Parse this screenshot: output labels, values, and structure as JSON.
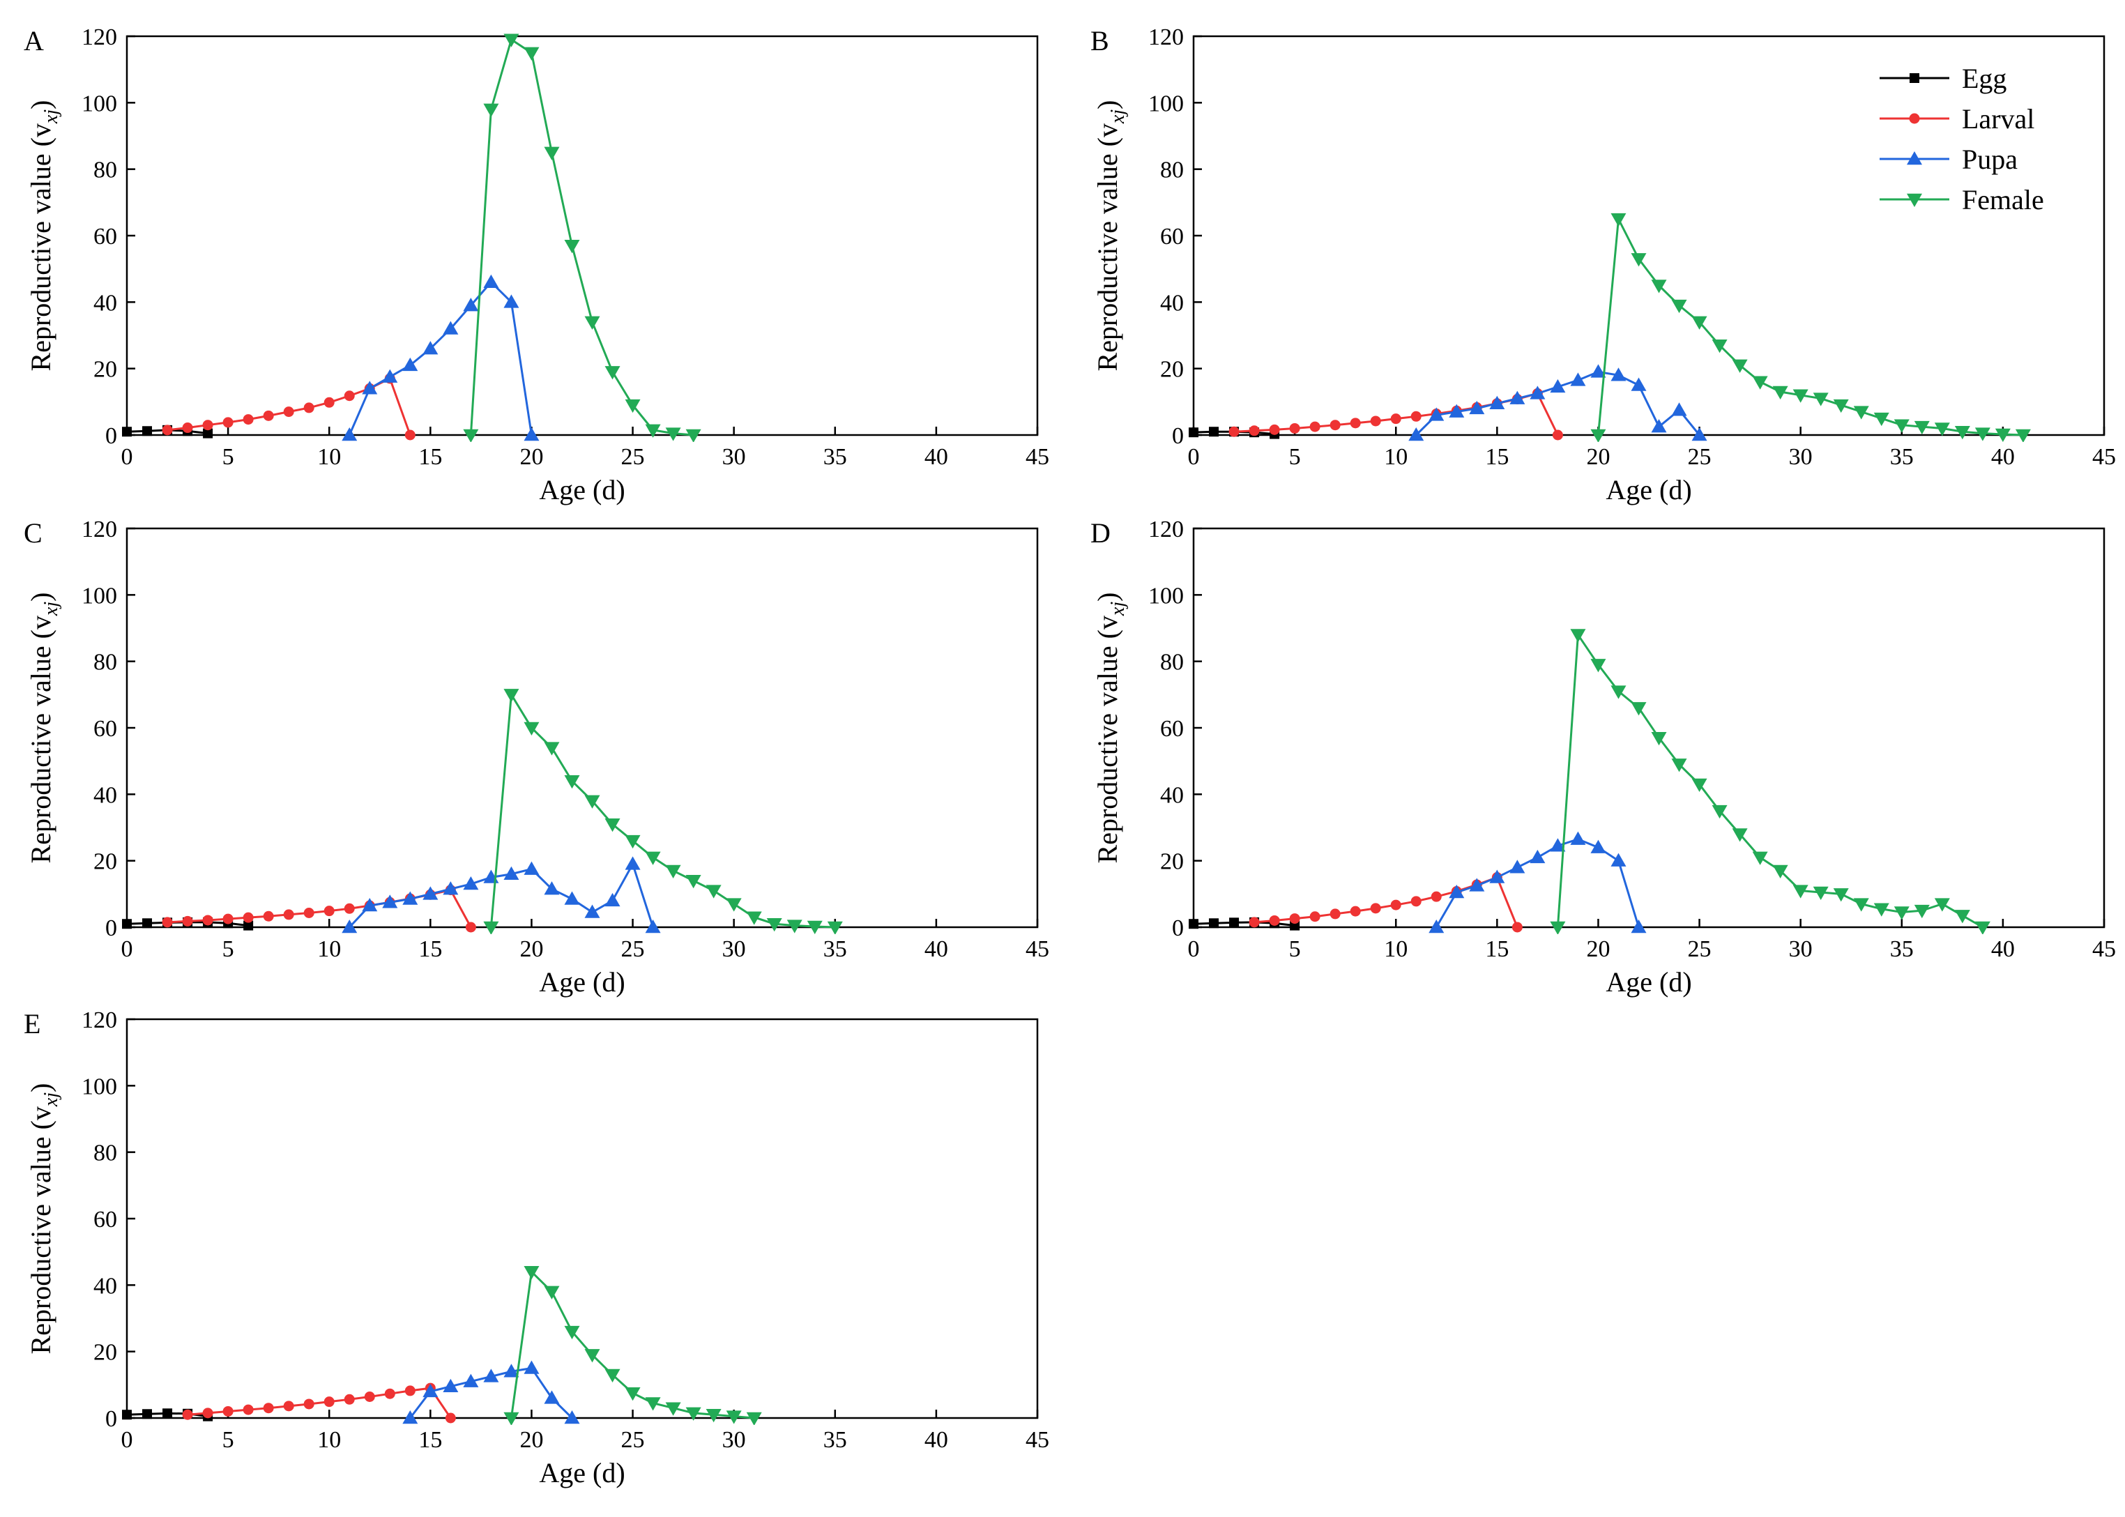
{
  "colors": {
    "egg": "#000000",
    "larval": "#ee3333",
    "pupa": "#2266dd",
    "female": "#22aa55"
  },
  "legend": {
    "labels": [
      "Egg",
      "Larval",
      "Pupa",
      "Female"
    ]
  },
  "chart_data": [
    {
      "type": "line",
      "panel": "A",
      "xlabel": "Age (d)",
      "ylabel": "Reproductive value (v",
      "ylabel_sub": "xj",
      "ylabel_close": ")",
      "xlim": [
        0,
        45
      ],
      "ylim": [
        0,
        120
      ],
      "xticks": [
        0,
        5,
        10,
        15,
        20,
        25,
        30,
        35,
        40,
        45
      ],
      "yticks": [
        0,
        20,
        40,
        60,
        80,
        100,
        120
      ],
      "series": [
        {
          "name": "Egg",
          "x": [
            0,
            1,
            2,
            3,
            4
          ],
          "y": [
            1,
            1.2,
            1.5,
            1.2,
            0.5
          ]
        },
        {
          "name": "Larval",
          "x": [
            2,
            3,
            4,
            5,
            6,
            7,
            8,
            9,
            10,
            11,
            12,
            13,
            14
          ],
          "y": [
            1.5,
            2.2,
            3,
            3.8,
            4.7,
            5.8,
            7,
            8.2,
            9.8,
            11.8,
            14,
            17,
            0
          ]
        },
        {
          "name": "Pupa",
          "x": [
            11,
            12,
            13,
            14,
            15,
            16,
            17,
            18,
            19,
            20
          ],
          "y": [
            0,
            14,
            17.5,
            21,
            26,
            32,
            39,
            46,
            40,
            0
          ]
        },
        {
          "name": "Female",
          "x": [
            17,
            18,
            19,
            20,
            21,
            22,
            23,
            24,
            25,
            26,
            27,
            28
          ],
          "y": [
            0,
            98,
            119,
            115,
            85,
            57,
            34,
            19,
            9,
            1.5,
            0.5,
            0
          ]
        }
      ]
    },
    {
      "type": "line",
      "panel": "B",
      "xlabel": "Age (d)",
      "ylabel": "Reproductive value (v",
      "ylabel_sub": "xj",
      "ylabel_close": ")",
      "xlim": [
        0,
        45
      ],
      "ylim": [
        0,
        120
      ],
      "xticks": [
        0,
        5,
        10,
        15,
        20,
        25,
        30,
        35,
        40,
        45
      ],
      "yticks": [
        0,
        20,
        40,
        60,
        80,
        100,
        120
      ],
      "series": [
        {
          "name": "Egg",
          "x": [
            0,
            1,
            2,
            3,
            4
          ],
          "y": [
            0.8,
            1,
            1,
            0.8,
            0.3
          ]
        },
        {
          "name": "Larval",
          "x": [
            2,
            3,
            4,
            5,
            6,
            7,
            8,
            9,
            10,
            11,
            12,
            13,
            14,
            15,
            16,
            17,
            18
          ],
          "y": [
            1,
            1.3,
            1.6,
            2,
            2.5,
            3,
            3.6,
            4.2,
            4.9,
            5.6,
            6.4,
            7.3,
            8.3,
            9.5,
            10.8,
            12.5,
            0
          ]
        },
        {
          "name": "Pupa",
          "x": [
            11,
            12,
            13,
            14,
            15,
            16,
            17,
            18,
            19,
            20,
            21,
            22,
            23,
            24,
            25
          ],
          "y": [
            0,
            6,
            7,
            8,
            9.5,
            11,
            12.5,
            14.5,
            16.5,
            19,
            18,
            15,
            2.5,
            7.5,
            0
          ]
        },
        {
          "name": "Female",
          "x": [
            20,
            21,
            22,
            23,
            24,
            25,
            26,
            27,
            28,
            29,
            30,
            31,
            32,
            33,
            34,
            35,
            36,
            37,
            38,
            39,
            40,
            41
          ],
          "y": [
            0,
            65,
            53,
            45,
            39,
            34,
            27,
            21,
            16,
            13,
            12,
            11,
            9,
            7,
            5,
            3,
            2.5,
            2,
            1,
            0.5,
            0.2,
            0
          ]
        }
      ]
    },
    {
      "type": "line",
      "panel": "C",
      "xlabel": "Age (d)",
      "ylabel": "Reproductive value (v",
      "ylabel_sub": "xj",
      "ylabel_close": ")",
      "xlim": [
        0,
        45
      ],
      "ylim": [
        0,
        120
      ],
      "xticks": [
        0,
        5,
        10,
        15,
        20,
        25,
        30,
        35,
        40,
        45
      ],
      "yticks": [
        0,
        20,
        40,
        60,
        80,
        100,
        120
      ],
      "series": [
        {
          "name": "Egg",
          "x": [
            0,
            1,
            2,
            3,
            4,
            5,
            6
          ],
          "y": [
            1,
            1.2,
            1.4,
            1.5,
            1.5,
            1.2,
            0.5
          ]
        },
        {
          "name": "Larval",
          "x": [
            2,
            3,
            4,
            5,
            6,
            7,
            8,
            9,
            10,
            11,
            12,
            13,
            14,
            15,
            16,
            17
          ],
          "y": [
            1.5,
            1.8,
            2.1,
            2.5,
            2.9,
            3.3,
            3.8,
            4.3,
            4.9,
            5.6,
            6.5,
            7.5,
            8.6,
            9.8,
            11.2,
            0
          ]
        },
        {
          "name": "Pupa",
          "x": [
            11,
            12,
            13,
            14,
            15,
            16,
            17,
            18,
            19,
            20,
            21,
            22,
            23,
            24,
            25,
            26
          ],
          "y": [
            0,
            6.5,
            7.5,
            8.5,
            10,
            11.5,
            13,
            15,
            16,
            17.5,
            11.5,
            8.5,
            4.5,
            8,
            19,
            0
          ]
        },
        {
          "name": "Female",
          "x": [
            18,
            19,
            20,
            21,
            22,
            23,
            24,
            25,
            26,
            27,
            28,
            29,
            30,
            31,
            32,
            33,
            34,
            35
          ],
          "y": [
            0,
            70,
            60,
            54,
            44,
            38,
            31,
            26,
            21,
            17,
            14,
            11,
            7,
            3,
            1,
            0.5,
            0.2,
            0
          ]
        }
      ]
    },
    {
      "type": "line",
      "panel": "D",
      "xlabel": "Age (d)",
      "ylabel": "Reproductive value (v",
      "ylabel_sub": "xj",
      "ylabel_close": ")",
      "xlim": [
        0,
        45
      ],
      "ylim": [
        0,
        120
      ],
      "xticks": [
        0,
        5,
        10,
        15,
        20,
        25,
        30,
        35,
        40,
        45
      ],
      "yticks": [
        0,
        20,
        40,
        60,
        80,
        100,
        120
      ],
      "series": [
        {
          "name": "Egg",
          "x": [
            0,
            1,
            2,
            3,
            4,
            5
          ],
          "y": [
            1,
            1.2,
            1.4,
            1.5,
            1.2,
            0.5
          ]
        },
        {
          "name": "Larval",
          "x": [
            3,
            4,
            5,
            6,
            7,
            8,
            9,
            10,
            11,
            12,
            13,
            14,
            15,
            16
          ],
          "y": [
            1.5,
            2,
            2.6,
            3.2,
            4,
            4.8,
            5.7,
            6.7,
            7.8,
            9.2,
            10.8,
            12.8,
            15,
            0
          ]
        },
        {
          "name": "Pupa",
          "x": [
            12,
            13,
            14,
            15,
            16,
            17,
            18,
            19,
            20,
            21,
            22
          ],
          "y": [
            0,
            10.5,
            12.5,
            15,
            18,
            21,
            24.5,
            26.5,
            24,
            20,
            0
          ]
        },
        {
          "name": "Female",
          "x": [
            18,
            19,
            20,
            21,
            22,
            23,
            24,
            25,
            26,
            27,
            28,
            29,
            30,
            31,
            32,
            33,
            34,
            35,
            36,
            37,
            38,
            39
          ],
          "y": [
            0,
            88,
            79,
            71,
            66,
            57,
            49,
            43,
            35,
            28,
            21,
            17,
            11,
            10.5,
            10,
            7,
            5.5,
            4.5,
            5,
            7,
            3.5,
            0
          ]
        }
      ]
    },
    {
      "type": "line",
      "panel": "E",
      "xlabel": "Age (d)",
      "ylabel": "Reproductive value (v",
      "ylabel_sub": "xj",
      "ylabel_close": ")",
      "xlim": [
        0,
        45
      ],
      "ylim": [
        0,
        120
      ],
      "xticks": [
        0,
        5,
        10,
        15,
        20,
        25,
        30,
        35,
        40,
        45
      ],
      "yticks": [
        0,
        20,
        40,
        60,
        80,
        100,
        120
      ],
      "series": [
        {
          "name": "Egg",
          "x": [
            0,
            1,
            2,
            3,
            4
          ],
          "y": [
            1,
            1.2,
            1.4,
            1.3,
            0.5
          ]
        },
        {
          "name": "Larval",
          "x": [
            3,
            4,
            5,
            6,
            7,
            8,
            9,
            10,
            11,
            12,
            13,
            14,
            15,
            16
          ],
          "y": [
            1,
            1.5,
            2,
            2.5,
            3,
            3.6,
            4.2,
            4.9,
            5.6,
            6.4,
            7.3,
            8.2,
            9,
            0
          ]
        },
        {
          "name": "Pupa",
          "x": [
            14,
            15,
            16,
            17,
            18,
            19,
            20,
            21,
            22
          ],
          "y": [
            0,
            8,
            9.5,
            11,
            12.5,
            14,
            15,
            6,
            0
          ]
        },
        {
          "name": "Female",
          "x": [
            19,
            20,
            21,
            22,
            23,
            24,
            25,
            26,
            27,
            28,
            29,
            30,
            31
          ],
          "y": [
            0,
            44,
            38,
            26,
            19,
            13,
            7.5,
            4.5,
            3,
            1.5,
            1,
            0.5,
            0
          ]
        }
      ]
    }
  ]
}
